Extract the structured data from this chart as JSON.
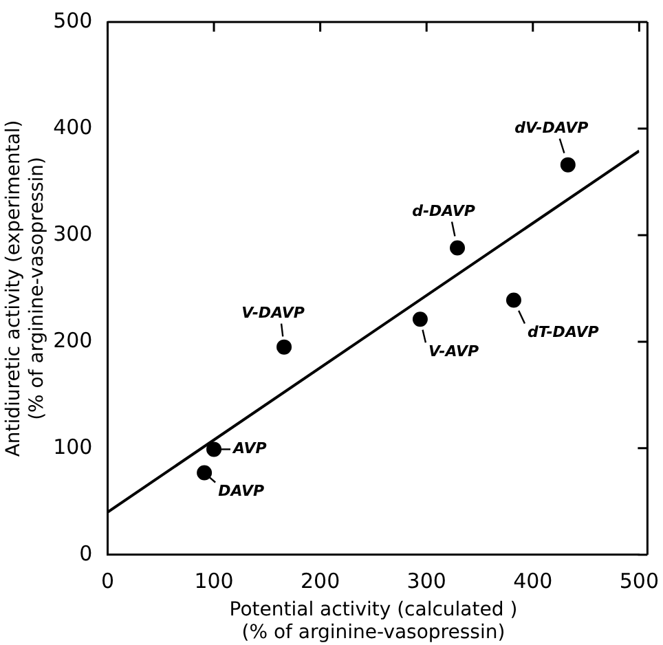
{
  "chart_data": {
    "type": "scatter",
    "xlabel": "Potential activity (calculated )\n(% of arginine-vasopressin)",
    "ylabel": "Antidiuretic activity (experimental)\n(% of arginine-vasopressin)",
    "series": [
      {
        "color": "#000000",
        "x": [
          100,
          91,
          166,
          294,
          329,
          382,
          433
        ],
        "values": [
          99,
          77,
          195,
          221,
          288,
          239,
          366
        ]
      },
      {
        "type": "line",
        "marker": "none",
        "color": "#000000",
        "x": [
          0,
          500
        ],
        "values": [
          40,
          379
        ]
      }
    ],
    "xlim": [
      0,
      500
    ],
    "ylim": [
      0,
      500
    ],
    "xticks": [
      0,
      100,
      200,
      300,
      400,
      500
    ],
    "yticks": [
      0,
      100,
      200,
      300,
      400,
      500
    ],
    "grid": false,
    "legend": false,
    "marker": "circle",
    "line_style": "solid",
    "annotations": [
      {
        "text": "AVP",
        "x": 100,
        "y": 99
      },
      {
        "text": "DAVP",
        "x": 91,
        "y": 77
      },
      {
        "text": "V-DAVP",
        "x": 166,
        "y": 195
      },
      {
        "text": "V-AVP",
        "x": 294,
        "y": 221
      },
      {
        "text": "d-DAVP",
        "x": 329,
        "y": 288
      },
      {
        "text": "dT-DAVP",
        "x": 382,
        "y": 239
      },
      {
        "text": "dV-DAVP",
        "x": 433,
        "y": 366
      }
    ]
  }
}
